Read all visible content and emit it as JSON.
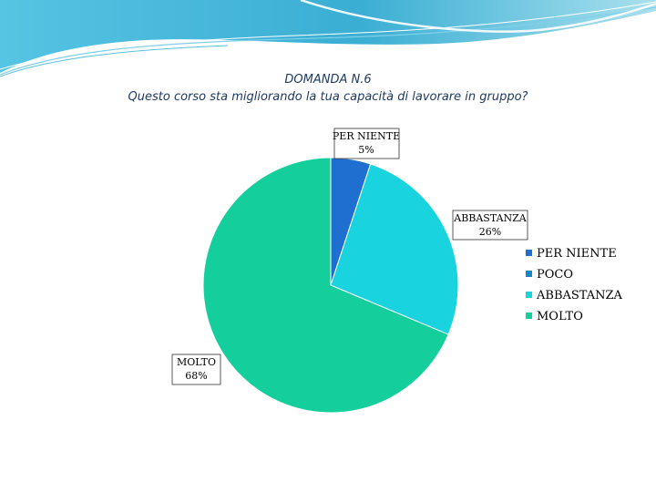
{
  "title": {
    "line1": "DOMANDA N.6",
    "line2": "Questo corso sta migliorando la tua capacità di lavorare in gruppo?"
  },
  "chart_data": {
    "type": "pie",
    "categories": [
      "PER NIENTE",
      "POCO",
      "ABBASTANZA",
      "MOLTO"
    ],
    "values": [
      5,
      0,
      26,
      68
    ],
    "data_labels": [
      {
        "category": "PER NIENTE",
        "text": "5%"
      },
      {
        "category": "ABBASTANZA",
        "text": "26%"
      },
      {
        "category": "MOLTO",
        "text": "68%"
      }
    ],
    "colors": [
      "#1f6fd1",
      "#1a86c9",
      "#19d3de",
      "#14cf9b"
    ],
    "legend": "right"
  },
  "theme": {
    "wave_dark": "#3aaed3",
    "wave_light": "#a8e0ee"
  }
}
